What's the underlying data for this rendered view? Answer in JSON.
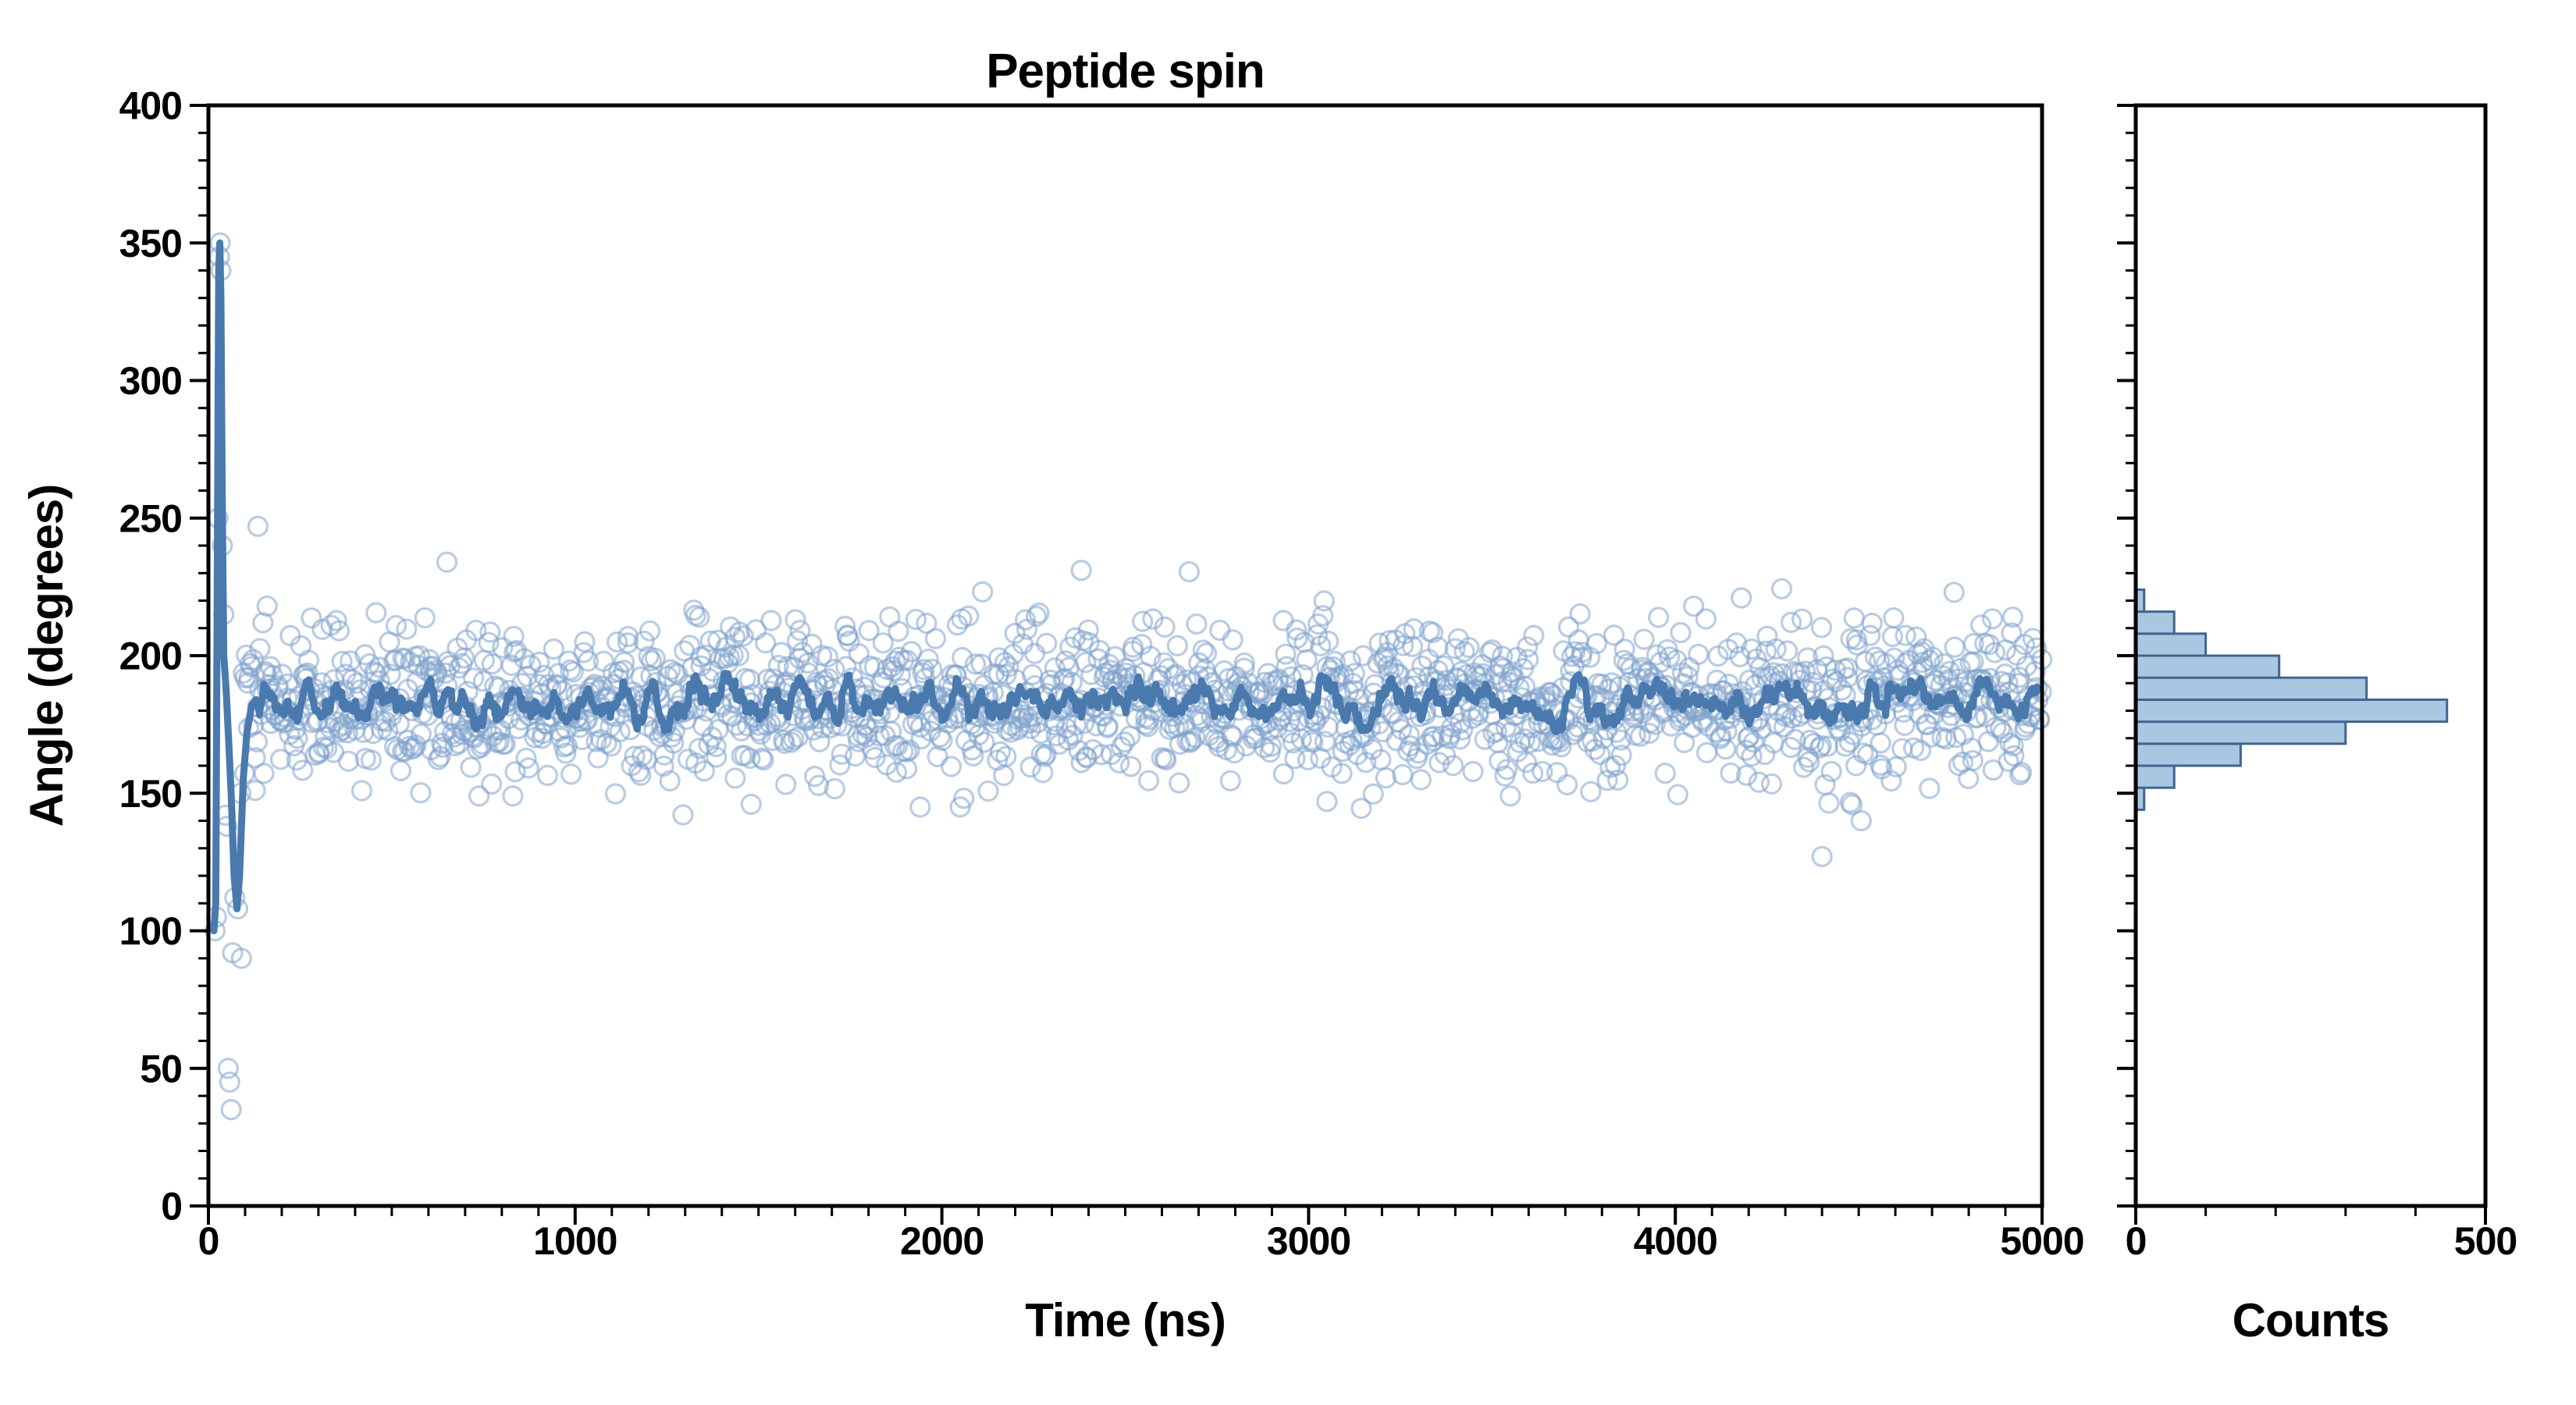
{
  "figure": {
    "title": "Peptide spin",
    "background": "#ffffff"
  },
  "style": {
    "scatter_color": "#7fa3cc",
    "scatter_opacity": 0.55,
    "line_color": "#4a79ae",
    "hist_fill": "#aac7e1",
    "hist_stroke": "#41658f",
    "axis_color": "#000000",
    "text_color": "#000000"
  },
  "chart_data": [
    {
      "type": "scatter",
      "name": "angle-vs-time",
      "title": "Peptide spin",
      "xlabel": "Time (ns)",
      "ylabel": "Angle (degrees)",
      "xlim": [
        0,
        5000
      ],
      "ylim": [
        0,
        400
      ],
      "x_tick_values": [
        0,
        1000,
        2000,
        3000,
        4000,
        5000
      ],
      "x_tick_labels": [
        "0",
        "1000",
        "2000",
        "3000",
        "4000",
        "5000"
      ],
      "x_minor_step": 100,
      "y_tick_values": [
        0,
        50,
        100,
        150,
        200,
        250,
        300,
        350,
        400
      ],
      "y_tick_labels": [
        "0",
        "50",
        "100",
        "150",
        "200",
        "250",
        "300",
        "350",
        "400"
      ],
      "y_minor_step": 10,
      "grid": false,
      "series": [
        {
          "name": "raw-angle-samples",
          "marker": "open-circle",
          "generator": {
            "seed": 42,
            "n": 1700,
            "t_min": 95,
            "t_max": 5000,
            "mean": 183,
            "sd": 14,
            "clip_lo": 138,
            "clip_hi": 234
          },
          "outliers": [
            [
              2380,
              231
            ],
            [
              4400,
              127
            ],
            [
              90,
              90
            ],
            [
              135,
              247
            ],
            [
              160,
              218
            ],
            [
              3050,
              147
            ],
            [
              4180,
              221
            ],
            [
              4760,
              223
            ],
            [
              4920,
              214
            ],
            [
              2050,
              145
            ],
            [
              1480,
              146
            ],
            [
              830,
              149
            ],
            [
              3550,
              149
            ],
            [
              4050,
              218
            ]
          ],
          "transient_points": [
            [
              18,
              100
            ],
            [
              22,
              105
            ],
            [
              26,
              250
            ],
            [
              30,
              345
            ],
            [
              32,
              350
            ],
            [
              34,
              340
            ],
            [
              38,
              240
            ],
            [
              42,
              215
            ],
            [
              46,
              142
            ],
            [
              50,
              138
            ],
            [
              54,
              50
            ],
            [
              58,
              45
            ],
            [
              62,
              35
            ],
            [
              66,
              92
            ],
            [
              72,
              112
            ],
            [
              80,
              108
            ],
            [
              88,
              150
            ]
          ]
        },
        {
          "name": "running-mean",
          "type": "line",
          "mean_level": 183,
          "window": 11,
          "transient_path": [
            [
              15,
              100
            ],
            [
              20,
              110
            ],
            [
              28,
              340
            ],
            [
              31,
              350
            ],
            [
              34,
              330
            ],
            [
              38,
              250
            ],
            [
              42,
              200
            ],
            [
              48,
              188
            ],
            [
              55,
              170
            ],
            [
              62,
              150
            ],
            [
              70,
              120
            ],
            [
              78,
              108
            ],
            [
              85,
              120
            ],
            [
              95,
              155
            ],
            [
              105,
              172
            ],
            [
              118,
              182
            ],
            [
              130,
              184
            ]
          ]
        }
      ]
    },
    {
      "type": "bar",
      "orientation": "horizontal",
      "name": "angle-histogram",
      "xlabel": "Counts",
      "ylabel": "",
      "xlim": [
        0,
        500
      ],
      "ylim": [
        0,
        400
      ],
      "x_tick_values": [
        0,
        500
      ],
      "x_tick_labels": [
        "0",
        "500"
      ],
      "x_minor_step": 100,
      "y_minor_step": 10,
      "y_major_step": 50,
      "bins": [
        {
          "lo": 144,
          "hi": 152,
          "count": 12
        },
        {
          "lo": 152,
          "hi": 160,
          "count": 55
        },
        {
          "lo": 160,
          "hi": 168,
          "count": 150
        },
        {
          "lo": 168,
          "hi": 176,
          "count": 300
        },
        {
          "lo": 176,
          "hi": 184,
          "count": 445
        },
        {
          "lo": 184,
          "hi": 192,
          "count": 330
        },
        {
          "lo": 192,
          "hi": 200,
          "count": 205
        },
        {
          "lo": 200,
          "hi": 208,
          "count": 100
        },
        {
          "lo": 208,
          "hi": 216,
          "count": 55
        },
        {
          "lo": 216,
          "hi": 224,
          "count": 12
        }
      ]
    }
  ]
}
